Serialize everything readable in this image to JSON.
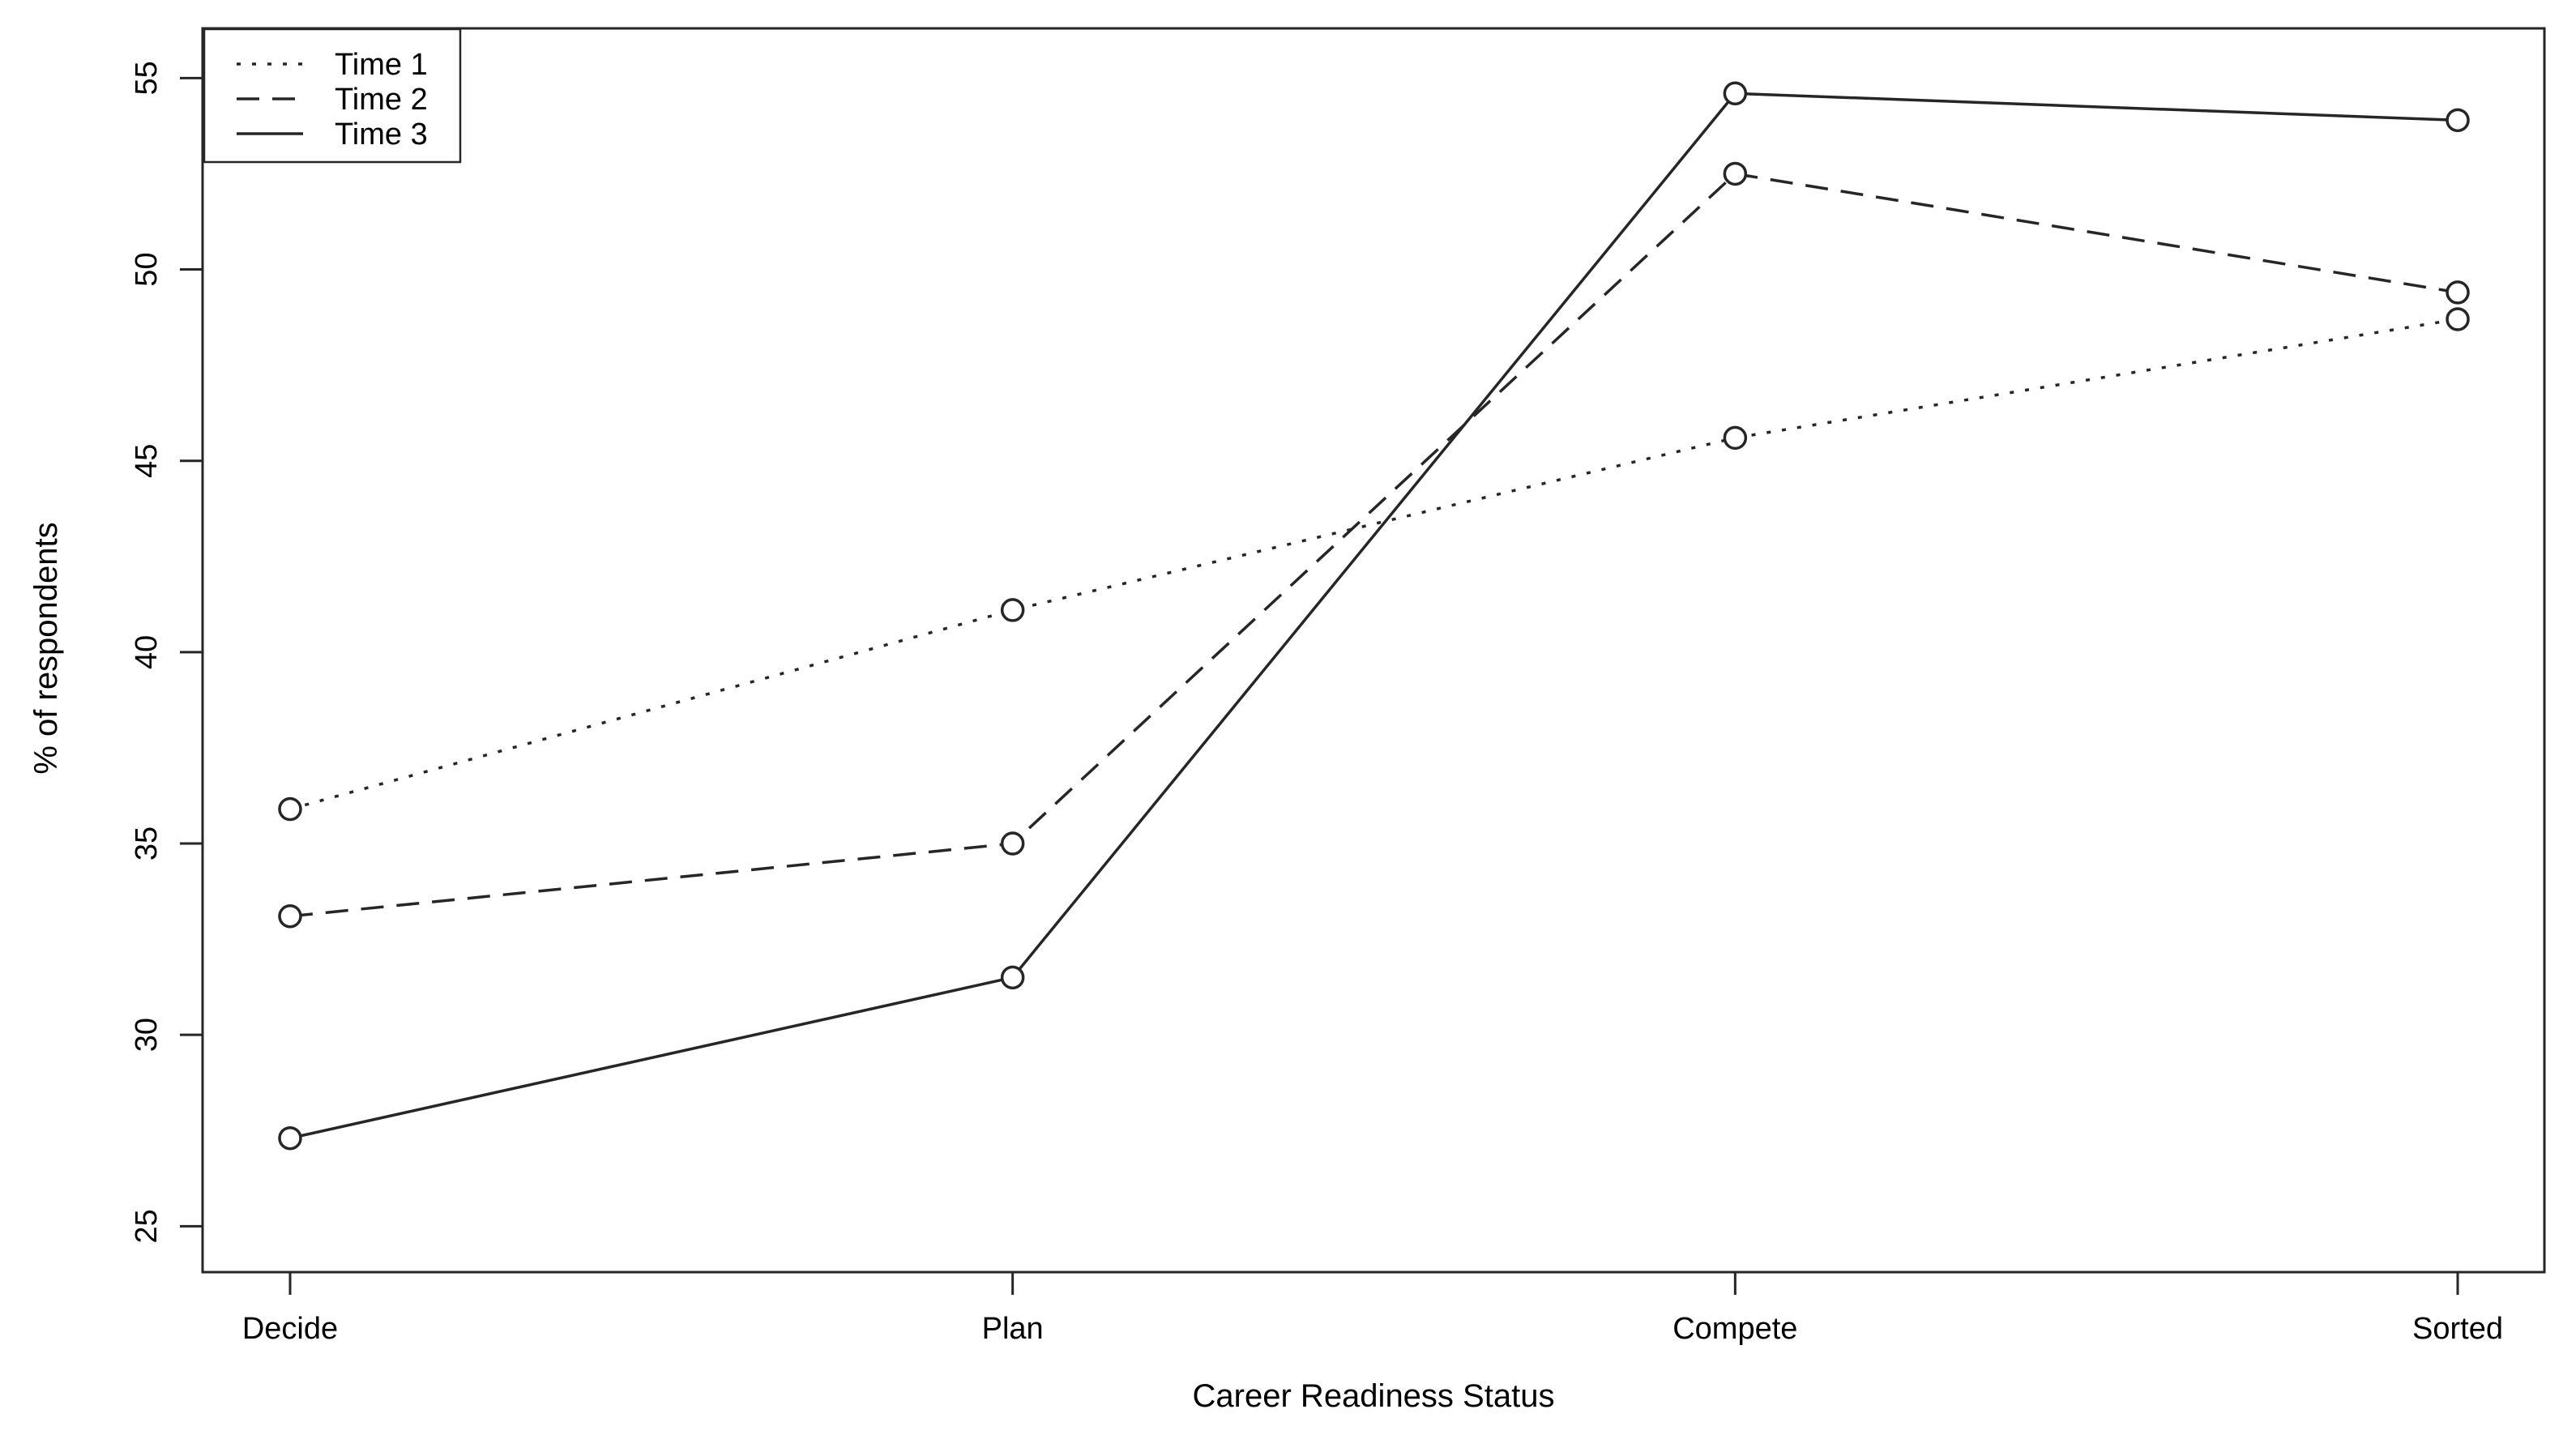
{
  "chart_data": {
    "type": "line",
    "title": "",
    "xlabel": "Career Readiness Status",
    "ylabel": "% of respondents",
    "categories": [
      "Decide",
      "Plan",
      "Compete",
      "Sorted"
    ],
    "series": [
      {
        "name": "Time 1",
        "line_style": "dotted",
        "values": [
          35.9,
          41.1,
          45.6,
          48.7
        ]
      },
      {
        "name": "Time 2",
        "line_style": "dashed",
        "values": [
          33.1,
          35.0,
          52.5,
          49.4
        ]
      },
      {
        "name": "Time 3",
        "line_style": "solid",
        "values": [
          27.3,
          31.5,
          54.6,
          53.9
        ]
      }
    ],
    "y_ticks": [
      25,
      30,
      35,
      40,
      45,
      50,
      55
    ],
    "ylim": [
      23.8,
      56.3
    ],
    "marker": "open-circle",
    "legend_position": "top-left",
    "grid": false,
    "colors": {
      "line": "#262626",
      "text": "#000000",
      "background": "#ffffff"
    }
  }
}
